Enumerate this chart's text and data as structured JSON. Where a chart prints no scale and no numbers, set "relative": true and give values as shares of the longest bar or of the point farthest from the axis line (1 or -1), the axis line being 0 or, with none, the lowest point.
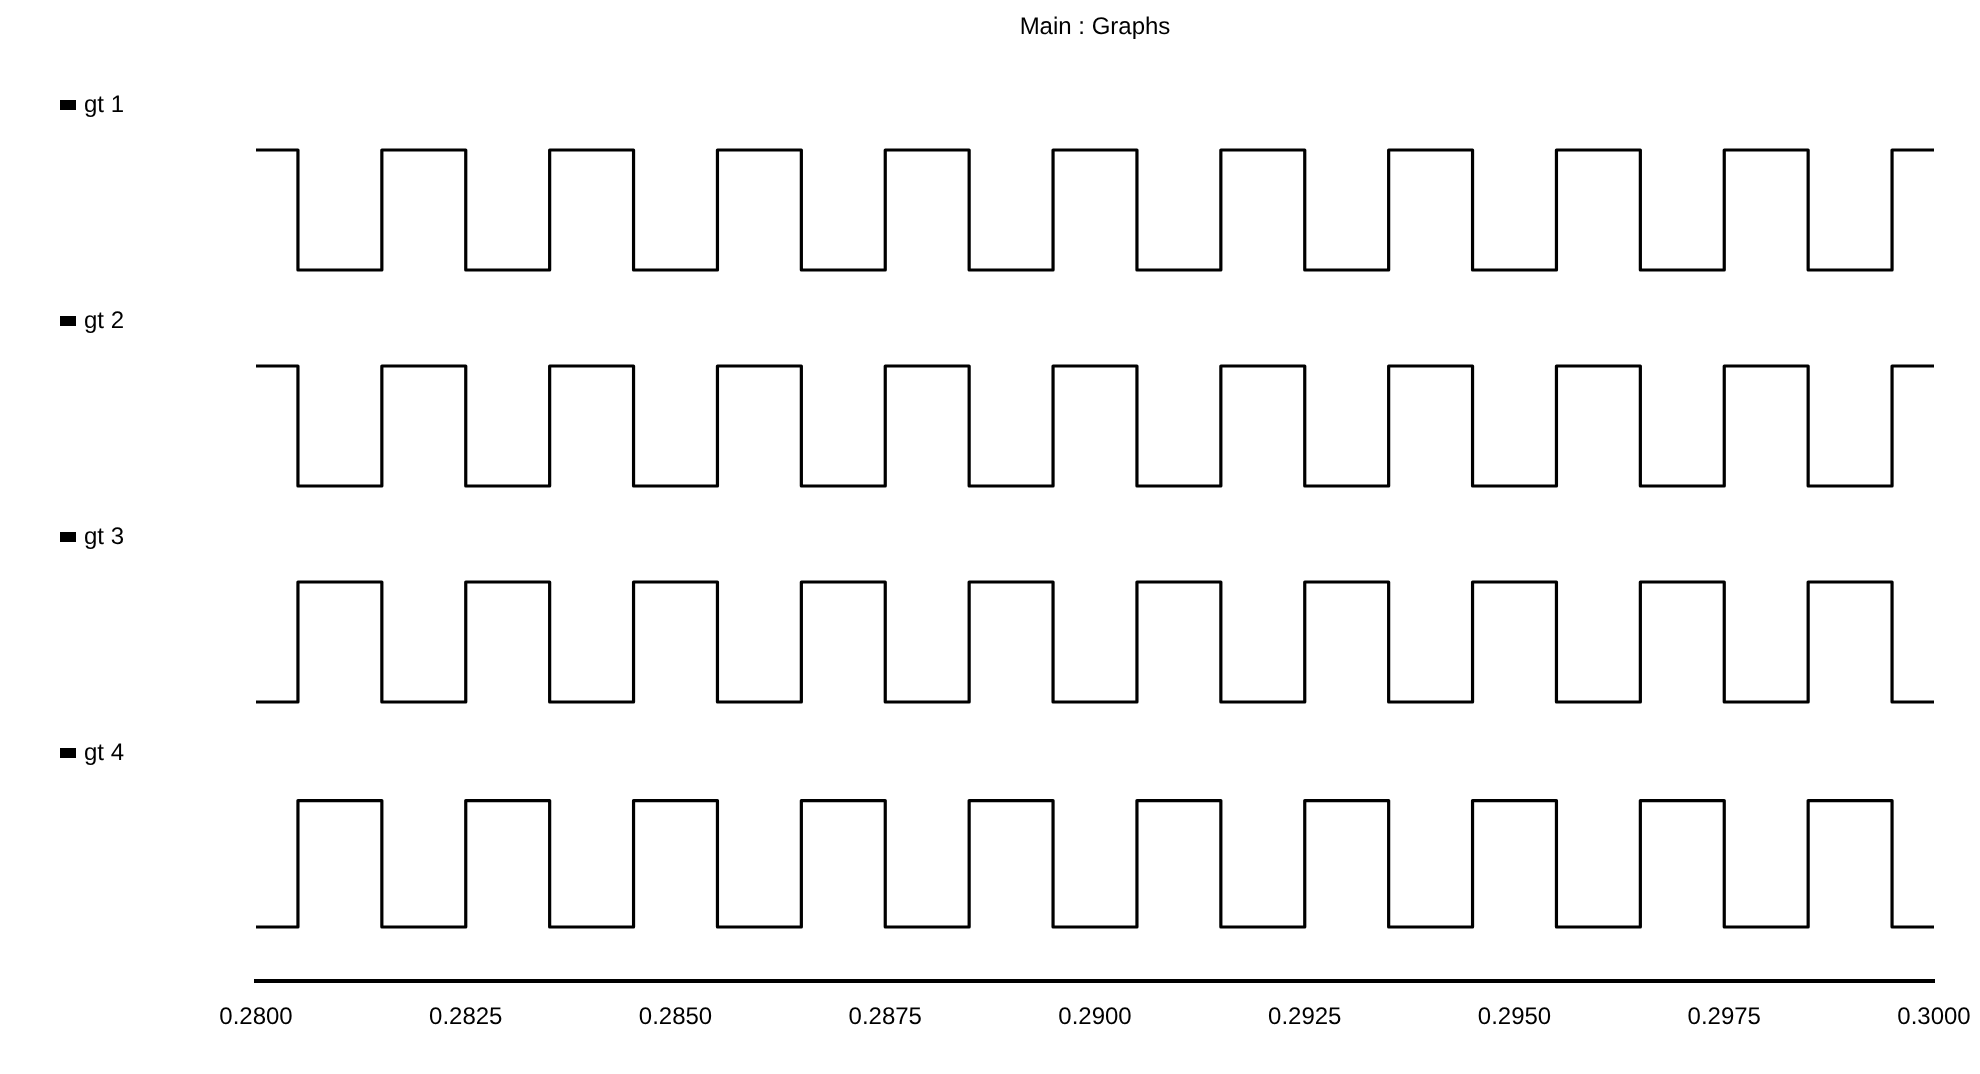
{
  "chart_data": [
    {
      "type": "step",
      "title": "Main : Graphs",
      "relative": true,
      "legend": "left",
      "tick_labels": false,
      "xlim": [
        0.28,
        0.3
      ],
      "x": [
        0.28,
        0.2805,
        0.2815,
        0.2825,
        0.2835,
        0.2845,
        0.2855,
        0.2865,
        0.2875,
        0.2885,
        0.2895,
        0.2905,
        0.2915,
        0.2925,
        0.2935,
        0.2945,
        0.2955,
        0.2965,
        0.2975,
        0.2985,
        0.2995,
        0.3
      ],
      "series": [
        {
          "name": "gt 1",
          "color": "#000000",
          "values": [
            1,
            0,
            1,
            0,
            1,
            0,
            1,
            0,
            1,
            0,
            1,
            0,
            1,
            0,
            1,
            0,
            1,
            0,
            1,
            0,
            1,
            1
          ]
        }
      ]
    },
    {
      "type": "step",
      "relative": true,
      "legend": "left",
      "tick_labels": false,
      "xlim": [
        0.28,
        0.3
      ],
      "x": [
        0.28,
        0.2805,
        0.2815,
        0.2825,
        0.2835,
        0.2845,
        0.2855,
        0.2865,
        0.2875,
        0.2885,
        0.2895,
        0.2905,
        0.2915,
        0.2925,
        0.2935,
        0.2945,
        0.2955,
        0.2965,
        0.2975,
        0.2985,
        0.2995,
        0.3
      ],
      "series": [
        {
          "name": "gt 2",
          "color": "#000000",
          "values": [
            1,
            0,
            1,
            0,
            1,
            0,
            1,
            0,
            1,
            0,
            1,
            0,
            1,
            0,
            1,
            0,
            1,
            0,
            1,
            0,
            1,
            1
          ]
        }
      ]
    },
    {
      "type": "step",
      "relative": true,
      "legend": "left",
      "tick_labels": false,
      "xlim": [
        0.28,
        0.3
      ],
      "x": [
        0.28,
        0.2805,
        0.2815,
        0.2825,
        0.2835,
        0.2845,
        0.2855,
        0.2865,
        0.2875,
        0.2885,
        0.2895,
        0.2905,
        0.2915,
        0.2925,
        0.2935,
        0.2945,
        0.2955,
        0.2965,
        0.2975,
        0.2985,
        0.2995,
        0.3
      ],
      "series": [
        {
          "name": "gt 3",
          "color": "#000000",
          "values": [
            0,
            1,
            0,
            1,
            0,
            1,
            0,
            1,
            0,
            1,
            0,
            1,
            0,
            1,
            0,
            1,
            0,
            1,
            0,
            1,
            0,
            0
          ]
        }
      ]
    },
    {
      "type": "step",
      "relative": true,
      "legend": "left",
      "tick_labels": "x",
      "xlim": [
        0.28,
        0.3
      ],
      "xticks": [
        {
          "value": 0.28,
          "label": "0.2800"
        },
        {
          "value": 0.2825,
          "label": "0.2825"
        },
        {
          "value": 0.285,
          "label": "0.2850"
        },
        {
          "value": 0.2875,
          "label": "0.2875"
        },
        {
          "value": 0.29,
          "label": "0.2900"
        },
        {
          "value": 0.2925,
          "label": "0.2925"
        },
        {
          "value": 0.295,
          "label": "0.2950"
        },
        {
          "value": 0.2975,
          "label": "0.2975"
        },
        {
          "value": 0.3,
          "label": "0.3000"
        }
      ],
      "x": [
        0.28,
        0.2805,
        0.2815,
        0.2825,
        0.2835,
        0.2845,
        0.2855,
        0.2865,
        0.2875,
        0.2885,
        0.2895,
        0.2905,
        0.2915,
        0.2925,
        0.2935,
        0.2945,
        0.2955,
        0.2965,
        0.2975,
        0.2985,
        0.2995,
        0.3
      ],
      "series": [
        {
          "name": "gt 4",
          "color": "#000000",
          "values": [
            0.3,
            1,
            0.3,
            1,
            0.3,
            1,
            0.3,
            1,
            0.3,
            1,
            0.3,
            1,
            0.3,
            1,
            0.3,
            1,
            0.3,
            1,
            0.3,
            1,
            0.3,
            0.3
          ]
        }
      ]
    }
  ]
}
